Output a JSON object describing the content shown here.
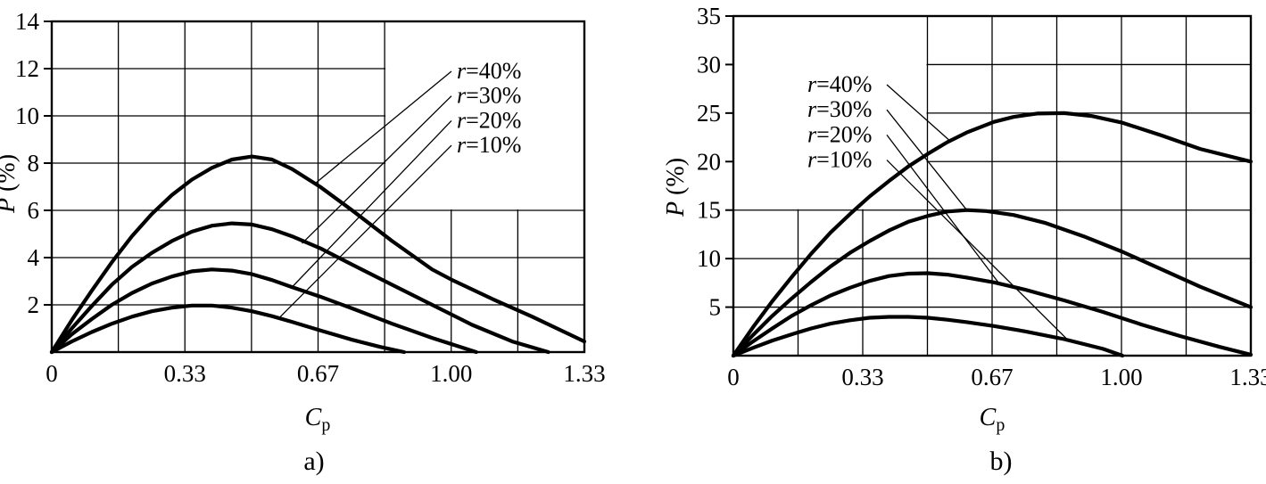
{
  "figure": {
    "description": "Two-panel line chart of P (%) versus Cp for reinforcement ratios r=10% to r=40%",
    "background": "#ffffff",
    "ink_color": "#000000"
  },
  "chart_data": [
    {
      "id": "a",
      "type": "line",
      "caption": "a)",
      "xlabel": {
        "base": "C",
        "sub": "p"
      },
      "ylabel": "P (%)",
      "xlim": [
        0,
        1.33
      ],
      "ylim": [
        0,
        14
      ],
      "grid": {
        "on": true,
        "x_divisions": 8,
        "y_divisions": 7
      },
      "x_ticks": [
        {
          "value": 0,
          "label": "0"
        },
        {
          "value": 0.3325,
          "label": "0.33"
        },
        {
          "value": 0.665,
          "label": "0.67"
        },
        {
          "value": 0.9975,
          "label": "1.00"
        },
        {
          "value": 1.33,
          "label": "1.33"
        }
      ],
      "y_ticks": [
        {
          "value": 2,
          "label": "2"
        },
        {
          "value": 4,
          "label": "4"
        },
        {
          "value": 6,
          "label": "6"
        },
        {
          "value": 8,
          "label": "8"
        },
        {
          "value": 10,
          "label": "10"
        },
        {
          "value": 12,
          "label": "12"
        },
        {
          "value": 14,
          "label": "14"
        }
      ],
      "legend": {
        "position": "upper-right",
        "entries": [
          {
            "label": "r=40%",
            "leader_target": [
              0.655,
              7.1
            ]
          },
          {
            "label": "r=30%",
            "leader_target": [
              0.625,
              4.6
            ]
          },
          {
            "label": "r=20%",
            "leader_target": [
              0.6,
              2.75
            ]
          },
          {
            "label": "r=10%",
            "leader_target": [
              0.565,
              1.4
            ]
          }
        ]
      },
      "series": [
        {
          "name": "r=40%",
          "peak": [
            0.5,
            8.3
          ],
          "points": [
            [
              0,
              0
            ],
            [
              0.05,
              1.35
            ],
            [
              0.1,
              2.6
            ],
            [
              0.15,
              3.8
            ],
            [
              0.2,
              4.9
            ],
            [
              0.25,
              5.85
            ],
            [
              0.3,
              6.65
            ],
            [
              0.35,
              7.3
            ],
            [
              0.4,
              7.8
            ],
            [
              0.45,
              8.15
            ],
            [
              0.5,
              8.28
            ],
            [
              0.55,
              8.15
            ],
            [
              0.6,
              7.75
            ],
            [
              0.67,
              7.0
            ],
            [
              0.75,
              6.0
            ],
            [
              0.85,
              4.7
            ],
            [
              0.95,
              3.5
            ],
            [
              1.0,
              3.05
            ],
            [
              1.1,
              2.25
            ],
            [
              1.2,
              1.5
            ],
            [
              1.33,
              0.45
            ]
          ]
        },
        {
          "name": "r=30%",
          "peak": [
            0.45,
            5.45
          ],
          "points": [
            [
              0,
              0
            ],
            [
              0.05,
              1.0
            ],
            [
              0.1,
              1.95
            ],
            [
              0.15,
              2.85
            ],
            [
              0.2,
              3.6
            ],
            [
              0.25,
              4.2
            ],
            [
              0.3,
              4.7
            ],
            [
              0.35,
              5.1
            ],
            [
              0.4,
              5.35
            ],
            [
              0.45,
              5.45
            ],
            [
              0.5,
              5.4
            ],
            [
              0.55,
              5.2
            ],
            [
              0.6,
              4.9
            ],
            [
              0.67,
              4.4
            ],
            [
              0.75,
              3.7
            ],
            [
              0.85,
              2.85
            ],
            [
              0.95,
              2.0
            ],
            [
              1.05,
              1.15
            ],
            [
              1.15,
              0.45
            ],
            [
              1.24,
              0
            ]
          ]
        },
        {
          "name": "r=20%",
          "peak": [
            0.4,
            3.5
          ],
          "points": [
            [
              0,
              0
            ],
            [
              0.05,
              0.75
            ],
            [
              0.1,
              1.4
            ],
            [
              0.15,
              2.0
            ],
            [
              0.2,
              2.5
            ],
            [
              0.25,
              2.9
            ],
            [
              0.3,
              3.2
            ],
            [
              0.35,
              3.42
            ],
            [
              0.4,
              3.5
            ],
            [
              0.45,
              3.45
            ],
            [
              0.5,
              3.3
            ],
            [
              0.55,
              3.05
            ],
            [
              0.6,
              2.75
            ],
            [
              0.67,
              2.35
            ],
            [
              0.75,
              1.85
            ],
            [
              0.85,
              1.2
            ],
            [
              0.95,
              0.6
            ],
            [
              1.06,
              0
            ]
          ]
        },
        {
          "name": "r=10%",
          "peak": [
            0.37,
            2.0
          ],
          "points": [
            [
              0,
              0
            ],
            [
              0.05,
              0.45
            ],
            [
              0.1,
              0.85
            ],
            [
              0.15,
              1.2
            ],
            [
              0.2,
              1.5
            ],
            [
              0.25,
              1.73
            ],
            [
              0.3,
              1.88
            ],
            [
              0.35,
              1.97
            ],
            [
              0.4,
              1.97
            ],
            [
              0.45,
              1.88
            ],
            [
              0.5,
              1.73
            ],
            [
              0.55,
              1.52
            ],
            [
              0.6,
              1.28
            ],
            [
              0.67,
              0.92
            ],
            [
              0.75,
              0.52
            ],
            [
              0.82,
              0.22
            ],
            [
              0.88,
              0
            ]
          ]
        }
      ]
    },
    {
      "id": "b",
      "type": "line",
      "caption": "b)",
      "xlabel": {
        "base": "C",
        "sub": "p"
      },
      "ylabel": "P (%)",
      "xlim": [
        0,
        1.33
      ],
      "ylim": [
        0,
        35
      ],
      "grid": {
        "on": true,
        "x_divisions": 8,
        "y_divisions": 7
      },
      "x_ticks": [
        {
          "value": 0,
          "label": "0"
        },
        {
          "value": 0.3325,
          "label": "0.33"
        },
        {
          "value": 0.665,
          "label": "0.67"
        },
        {
          "value": 0.9975,
          "label": "1.00"
        },
        {
          "value": 1.33,
          "label": "1.33"
        }
      ],
      "y_ticks": [
        {
          "value": 5,
          "label": "5"
        },
        {
          "value": 10,
          "label": "10"
        },
        {
          "value": 15,
          "label": "15"
        },
        {
          "value": 20,
          "label": "20"
        },
        {
          "value": 25,
          "label": "25"
        },
        {
          "value": 30,
          "label": "30"
        },
        {
          "value": 35,
          "label": "35"
        }
      ],
      "legend": {
        "position": "upper-left",
        "entries": [
          {
            "label": "r=40%",
            "leader_target": [
              0.555,
              22.2
            ]
          },
          {
            "label": "r=30%",
            "leader_target": [
              0.6,
              15.0
            ]
          },
          {
            "label": "r=20%",
            "leader_target": [
              0.68,
              7.6
            ]
          },
          {
            "label": "r=10%",
            "leader_target": [
              0.86,
              1.6
            ]
          }
        ]
      },
      "series": [
        {
          "name": "r=40%",
          "peak": [
            0.8,
            25
          ],
          "points": [
            [
              0,
              0
            ],
            [
              0.05,
              2.9
            ],
            [
              0.1,
              5.6
            ],
            [
              0.15,
              8.1
            ],
            [
              0.2,
              10.5
            ],
            [
              0.25,
              12.7
            ],
            [
              0.3,
              14.6
            ],
            [
              0.35,
              16.4
            ],
            [
              0.4,
              18.0
            ],
            [
              0.45,
              19.5
            ],
            [
              0.5,
              20.8
            ],
            [
              0.55,
              22.0
            ],
            [
              0.6,
              23.0
            ],
            [
              0.67,
              24.1
            ],
            [
              0.72,
              24.6
            ],
            [
              0.78,
              24.95
            ],
            [
              0.85,
              25.0
            ],
            [
              0.92,
              24.7
            ],
            [
              1.0,
              24.0
            ],
            [
              1.1,
              22.7
            ],
            [
              1.2,
              21.3
            ],
            [
              1.33,
              20.0
            ]
          ]
        },
        {
          "name": "r=30%",
          "peak": [
            0.6,
            15
          ],
          "points": [
            [
              0,
              0
            ],
            [
              0.05,
              2.1
            ],
            [
              0.1,
              4.1
            ],
            [
              0.15,
              5.9
            ],
            [
              0.2,
              7.6
            ],
            [
              0.25,
              9.2
            ],
            [
              0.3,
              10.6
            ],
            [
              0.35,
              11.8
            ],
            [
              0.4,
              12.9
            ],
            [
              0.45,
              13.8
            ],
            [
              0.5,
              14.4
            ],
            [
              0.55,
              14.85
            ],
            [
              0.6,
              15.0
            ],
            [
              0.65,
              14.9
            ],
            [
              0.72,
              14.5
            ],
            [
              0.8,
              13.7
            ],
            [
              0.9,
              12.3
            ],
            [
              1.0,
              10.7
            ],
            [
              1.1,
              8.9
            ],
            [
              1.2,
              7.1
            ],
            [
              1.33,
              5.0
            ]
          ]
        },
        {
          "name": "r=20%",
          "peak": [
            0.5,
            8.5
          ],
          "points": [
            [
              0,
              0
            ],
            [
              0.05,
              1.45
            ],
            [
              0.1,
              2.8
            ],
            [
              0.15,
              4.1
            ],
            [
              0.2,
              5.2
            ],
            [
              0.25,
              6.2
            ],
            [
              0.3,
              7.0
            ],
            [
              0.35,
              7.7
            ],
            [
              0.4,
              8.2
            ],
            [
              0.45,
              8.45
            ],
            [
              0.5,
              8.5
            ],
            [
              0.55,
              8.35
            ],
            [
              0.6,
              8.05
            ],
            [
              0.67,
              7.55
            ],
            [
              0.75,
              6.8
            ],
            [
              0.85,
              5.7
            ],
            [
              0.95,
              4.5
            ],
            [
              1.05,
              3.2
            ],
            [
              1.15,
              2.0
            ],
            [
              1.25,
              0.9
            ],
            [
              1.33,
              0.1
            ]
          ]
        },
        {
          "name": "r=10%",
          "peak": [
            0.45,
            4.0
          ],
          "points": [
            [
              0,
              0
            ],
            [
              0.05,
              0.8
            ],
            [
              0.1,
              1.55
            ],
            [
              0.15,
              2.2
            ],
            [
              0.2,
              2.8
            ],
            [
              0.25,
              3.3
            ],
            [
              0.3,
              3.65
            ],
            [
              0.35,
              3.9
            ],
            [
              0.4,
              4.0
            ],
            [
              0.45,
              4.0
            ],
            [
              0.5,
              3.9
            ],
            [
              0.55,
              3.7
            ],
            [
              0.6,
              3.45
            ],
            [
              0.67,
              3.05
            ],
            [
              0.75,
              2.5
            ],
            [
              0.85,
              1.7
            ],
            [
              0.95,
              0.7
            ],
            [
              1.0,
              0
            ]
          ]
        }
      ]
    }
  ]
}
